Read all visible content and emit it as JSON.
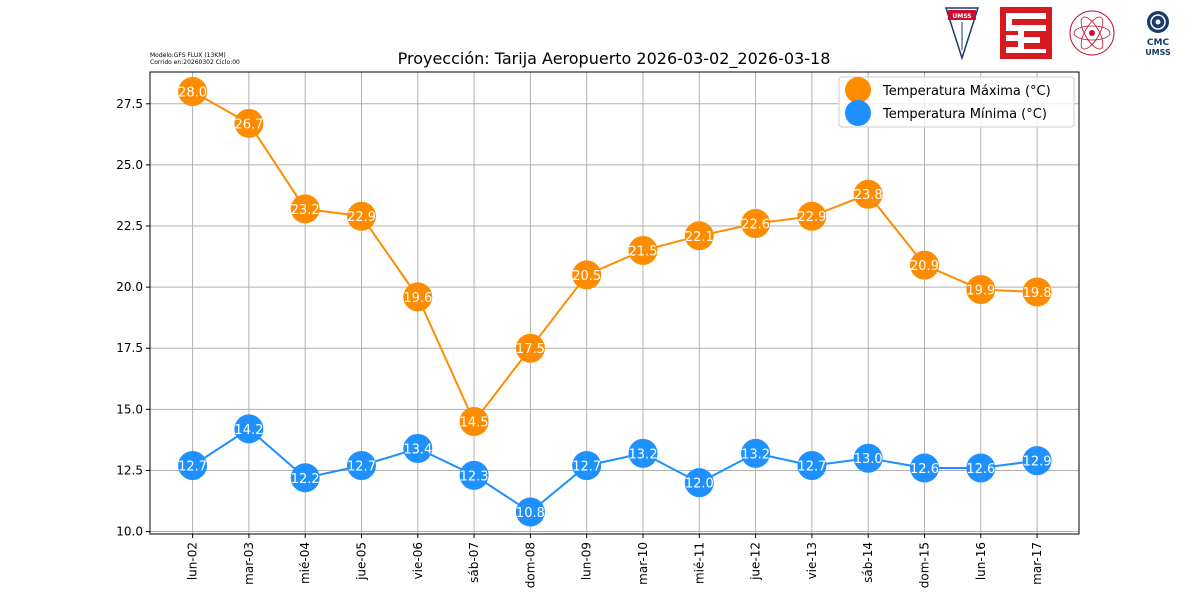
{
  "meta": {
    "model_line": "Modelo:GFS FLUX (13KM)",
    "run_line": "Corrido en:20260302 Ciclo:00"
  },
  "logos": {
    "umss_badge": "UMSS",
    "cmc_line1": "CMC",
    "cmc_line2": "UMSS"
  },
  "chart_data": {
    "type": "line",
    "title": "Proyección: Tarija Aeropuerto 2026-03-02_2026-03-18",
    "xlabel": "",
    "ylabel": "",
    "categories": [
      "lun-02",
      "mar-03",
      "mié-04",
      "jue-05",
      "vie-06",
      "sáb-07",
      "dom-08",
      "lun-09",
      "mar-10",
      "mié-11",
      "jue-12",
      "vie-13",
      "sáb-14",
      "dom-15",
      "lun-16",
      "mar-17"
    ],
    "series": [
      {
        "name": "Temperatura Máxima  (°C)",
        "color": "#ff8c00",
        "values": [
          28.0,
          26.7,
          23.2,
          22.9,
          19.6,
          14.5,
          17.5,
          20.5,
          21.5,
          22.1,
          22.6,
          22.9,
          23.8,
          20.9,
          19.9,
          19.8
        ],
        "labels": [
          "28.0",
          "26.7",
          "23.2",
          "22.9",
          "19.6",
          "14.5",
          "17.5",
          "20.5",
          "21.5",
          "22.1",
          "22.6",
          "22.9",
          "23.8",
          "20.9",
          "19.9",
          "19.8"
        ]
      },
      {
        "name": "Temperatura Mínima  (°C)",
        "color": "#1e90ff",
        "values": [
          12.7,
          14.2,
          12.2,
          12.7,
          13.4,
          12.3,
          10.8,
          12.7,
          13.2,
          12.0,
          13.2,
          12.7,
          13.0,
          12.6,
          12.6,
          12.9
        ],
        "labels": [
          "12.7",
          "14.2",
          "12.2",
          "12.7",
          "13.4",
          "12.3",
          "10.8",
          "12.7",
          "13.2",
          "12.0",
          "13.2",
          "12.7",
          "13.0",
          "12.6",
          "12.6",
          "12.9"
        ]
      }
    ],
    "ylim": [
      9.9,
      28.8
    ],
    "yticks": [
      10.0,
      12.5,
      15.0,
      17.5,
      20.0,
      22.5,
      25.0,
      27.5
    ],
    "ytick_labels": [
      "10.0",
      "12.5",
      "15.0",
      "17.5",
      "20.0",
      "22.5",
      "25.0",
      "27.5"
    ],
    "grid": true,
    "legend_position": "top-right"
  }
}
